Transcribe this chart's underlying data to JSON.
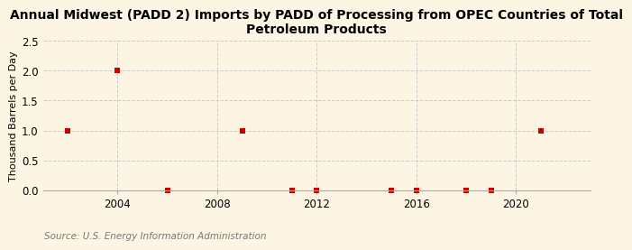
{
  "title": "Annual Midwest (PADD 2) Imports by PADD of Processing from OPEC Countries of Total\nPetroleum Products",
  "ylabel": "Thousand Barrels per Day",
  "source": "Source: U.S. Energy Information Administration",
  "background_color": "#fdf5e4",
  "x_data": [
    2002,
    2004,
    2006,
    2009,
    2011,
    2012,
    2015,
    2016,
    2018,
    2019,
    2021
  ],
  "y_data": [
    1.0,
    2.0,
    0.0,
    1.0,
    0.0,
    0.0,
    0.0,
    0.0,
    0.0,
    0.0,
    1.0
  ],
  "ylim": [
    0,
    2.5
  ],
  "xlim": [
    2001,
    2023
  ],
  "xticks": [
    2004,
    2008,
    2012,
    2016,
    2020
  ],
  "yticks": [
    0.0,
    0.5,
    1.0,
    1.5,
    2.0,
    2.5
  ],
  "marker_color": "#cc0000",
  "marker_size": 4,
  "grid_color": "#cccccc",
  "title_fontsize": 10,
  "label_fontsize": 8,
  "tick_fontsize": 8.5,
  "source_fontsize": 7.5
}
